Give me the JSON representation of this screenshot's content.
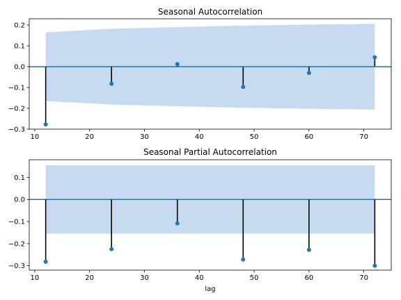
{
  "figure": {
    "background": "#ffffff"
  },
  "chart_data": [
    {
      "type": "stem",
      "title": "Seasonal Autocorrelation",
      "xlabel": "",
      "ylabel": "",
      "xlim": [
        9,
        75
      ],
      "ylim": [
        -0.3,
        0.23
      ],
      "xticks": [
        10,
        20,
        30,
        40,
        50,
        60,
        70
      ],
      "yticks": [
        -0.3,
        -0.2,
        -0.1,
        0.0,
        0.1,
        0.2
      ],
      "ytick_labels": [
        "−0.3",
        "−0.2",
        "−0.1",
        "0.0",
        "0.1",
        "0.2"
      ],
      "x": [
        12,
        24,
        36,
        48,
        60,
        72
      ],
      "values": [
        -0.277,
        -0.082,
        0.012,
        -0.097,
        -0.03,
        0.045
      ],
      "confidence_band": {
        "x": [
          12,
          24,
          36,
          48,
          60,
          72
        ],
        "upper": [
          0.165,
          0.182,
          0.19,
          0.197,
          0.202,
          0.206
        ],
        "lower": [
          -0.165,
          -0.182,
          -0.19,
          -0.197,
          -0.202,
          -0.206
        ]
      },
      "zero_line": true,
      "colors": {
        "marker": "#1f77b4",
        "stem": "#000000",
        "band": "#c6dbef",
        "zero": "#1f77b4"
      }
    },
    {
      "type": "stem",
      "title": "Seasonal Partial Autocorrelation",
      "xlabel": "lag",
      "ylabel": "",
      "xlim": [
        9,
        75
      ],
      "ylim": [
        -0.32,
        0.18
      ],
      "xticks": [
        10,
        20,
        30,
        40,
        50,
        60,
        70
      ],
      "yticks": [
        -0.3,
        -0.2,
        -0.1,
        0.0,
        0.1
      ],
      "ytick_labels": [
        "−0.3",
        "−0.2",
        "−0.1",
        "0.0",
        "0.1"
      ],
      "x": [
        12,
        24,
        36,
        48,
        60,
        72
      ],
      "values": [
        -0.282,
        -0.225,
        -0.108,
        -0.272,
        -0.228,
        -0.3
      ],
      "confidence_band": {
        "x": [
          12,
          24,
          36,
          48,
          60,
          72
        ],
        "upper": [
          0.155,
          0.155,
          0.155,
          0.155,
          0.155,
          0.155
        ],
        "lower": [
          -0.155,
          -0.155,
          -0.155,
          -0.155,
          -0.155,
          -0.155
        ]
      },
      "zero_line": true,
      "colors": {
        "marker": "#1f77b4",
        "stem": "#000000",
        "band": "#c6dbef",
        "zero": "#1f77b4"
      }
    }
  ]
}
